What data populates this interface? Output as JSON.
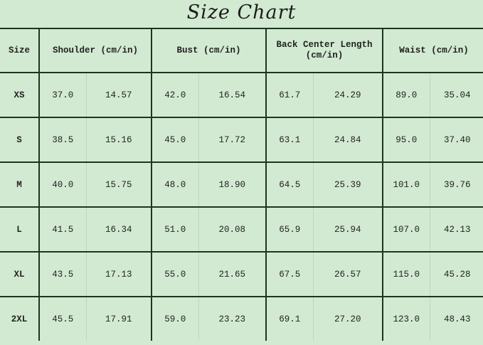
{
  "title": "Size Chart",
  "headers": [
    "Size",
    "Shoulder (cm/in)",
    "Bust (cm/in)",
    "Back Center Length (cm/in)",
    "Waist (cm/in)"
  ],
  "rows": [
    {
      "size": "XS",
      "values": [
        "37.0",
        "14.57",
        "42.0",
        "16.54",
        "61.7",
        "24.29",
        "89.0",
        "35.04"
      ]
    },
    {
      "size": "S",
      "values": [
        "38.5",
        "15.16",
        "45.0",
        "17.72",
        "63.1",
        "24.84",
        "95.0",
        "37.40"
      ]
    },
    {
      "size": "M",
      "values": [
        "40.0",
        "15.75",
        "48.0",
        "18.90",
        "64.5",
        "25.39",
        "101.0",
        "39.76"
      ]
    },
    {
      "size": "L",
      "values": [
        "41.5",
        "16.34",
        "51.0",
        "20.08",
        "65.9",
        "25.94",
        "107.0",
        "42.13"
      ]
    },
    {
      "size": "XL",
      "values": [
        "43.5",
        "17.13",
        "55.0",
        "21.65",
        "67.5",
        "26.57",
        "115.0",
        "45.28"
      ]
    },
    {
      "size": "2XL",
      "values": [
        "45.5",
        "17.91",
        "59.0",
        "23.23",
        "69.1",
        "27.20",
        "123.0",
        "48.43"
      ]
    }
  ]
}
